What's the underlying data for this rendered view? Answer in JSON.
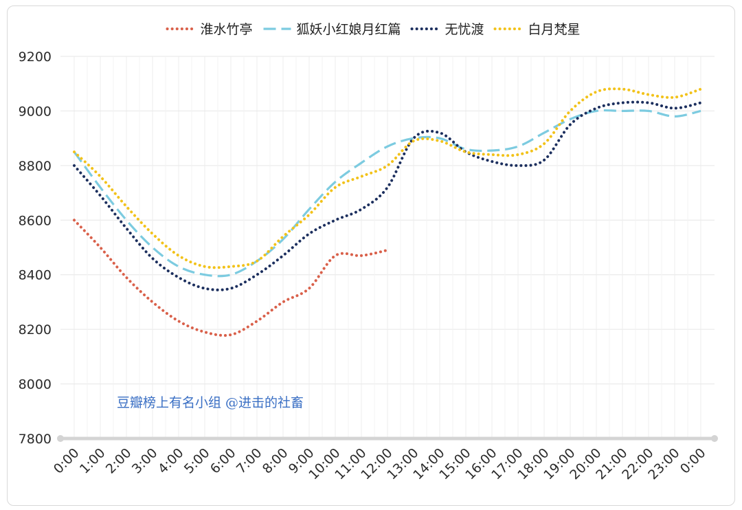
{
  "chart_data": {
    "type": "line",
    "x": [
      "0:00",
      "1:00",
      "2:00",
      "3:00",
      "4:00",
      "5:00",
      "6:00",
      "7:00",
      "8:00",
      "9:00",
      "10:00",
      "11:00",
      "12:00",
      "13:00",
      "14:00",
      "15:00",
      "16:00",
      "17:00",
      "18:00",
      "19:00",
      "20:00",
      "21:00",
      "22:00",
      "23:00",
      "0:00"
    ],
    "ylim": [
      7800,
      9200
    ],
    "yticks": [
      7800,
      8000,
      8200,
      8400,
      8600,
      8800,
      9000,
      9200
    ],
    "grid": true,
    "legend_position": "top-center",
    "series": [
      {
        "name": "淮水竹亭",
        "color": "#d9604a",
        "dash": "dotted",
        "values": [
          8600,
          8500,
          8390,
          8300,
          8230,
          8190,
          8180,
          8230,
          8300,
          8350,
          8470,
          8470,
          8490,
          null,
          null,
          null,
          null,
          null,
          null,
          null,
          null,
          null,
          null,
          null,
          null
        ]
      },
      {
        "name": "狐妖小红娘月红篇",
        "color": "#7ccbe0",
        "dash": "dashed",
        "values": [
          8850,
          8720,
          8600,
          8500,
          8430,
          8400,
          8400,
          8450,
          8530,
          8640,
          8740,
          8810,
          8870,
          8900,
          8900,
          8860,
          8855,
          8870,
          8920,
          8970,
          9000,
          9000,
          9000,
          8980,
          9000
        ]
      },
      {
        "name": "无忧渡",
        "color": "#1c2f5e",
        "dash": "dotted",
        "values": [
          8800,
          8690,
          8570,
          8460,
          8390,
          8350,
          8350,
          8400,
          8470,
          8550,
          8600,
          8640,
          8720,
          8900,
          8920,
          8850,
          8815,
          8800,
          8820,
          8950,
          9010,
          9030,
          9030,
          9010,
          9030
        ]
      },
      {
        "name": "白月梵星",
        "color": "#f2c21a",
        "dash": "dotted",
        "values": [
          8850,
          8760,
          8650,
          8550,
          8470,
          8430,
          8430,
          8450,
          8540,
          8620,
          8720,
          8760,
          8800,
          8890,
          8890,
          8850,
          8840,
          8840,
          8880,
          9000,
          9070,
          9080,
          9060,
          9050,
          9080
        ]
      }
    ]
  },
  "watermark": "豆瓣榜上有名小组 @进击的社畜"
}
